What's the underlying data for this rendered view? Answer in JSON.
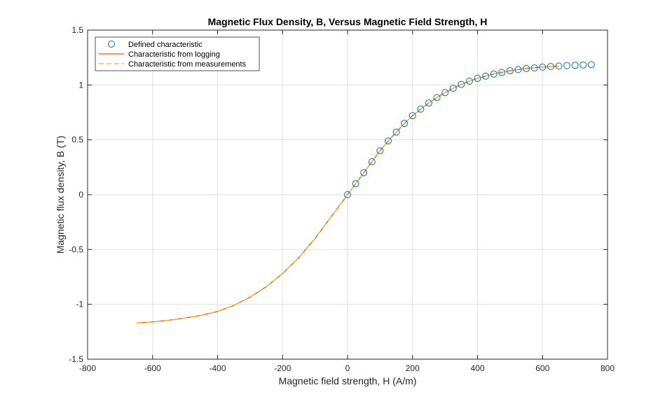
{
  "chart_data": {
    "type": "line",
    "title": "Magnetic Flux Density, B, Versus Magnetic Field Strength, H",
    "xlabel": "Magnetic field strength, H (A/m)",
    "ylabel": "Magnetic flux density, B (T)",
    "xlim": [
      -800,
      800
    ],
    "ylim": [
      -1.5,
      1.5
    ],
    "xticks": [
      -800,
      -600,
      -400,
      -200,
      0,
      200,
      400,
      600,
      800
    ],
    "xtick_labels": [
      "-800",
      "-600",
      "-400",
      "-200",
      "0",
      "200",
      "400",
      "600",
      "800"
    ],
    "yticks": [
      -1.5,
      -1,
      -0.5,
      0,
      0.5,
      1,
      1.5
    ],
    "ytick_labels": [
      "-1.5",
      "-1",
      "-0.5",
      "0",
      "0.5",
      "1",
      "1.5"
    ],
    "grid": true,
    "legend_position": "top-left",
    "series": [
      {
        "name": "Defined characteristic",
        "style": "markers",
        "marker": "circle",
        "color": "#0072BD",
        "x": [
          0,
          25,
          50,
          75,
          100,
          125,
          150,
          175,
          200,
          225,
          250,
          275,
          300,
          325,
          350,
          375,
          400,
          425,
          450,
          475,
          500,
          525,
          550,
          575,
          600,
          625,
          650,
          675,
          700,
          725,
          750
        ],
        "y": [
          0,
          0.1,
          0.2,
          0.3,
          0.4,
          0.49,
          0.57,
          0.65,
          0.72,
          0.78,
          0.835,
          0.885,
          0.93,
          0.97,
          1.005,
          1.035,
          1.06,
          1.08,
          1.1,
          1.115,
          1.13,
          1.14,
          1.15,
          1.155,
          1.163,
          1.168,
          1.172,
          1.176,
          1.179,
          1.182,
          1.185
        ]
      },
      {
        "name": "Characteristic from logging",
        "style": "solid",
        "color": "#D95319",
        "x": [
          -650,
          -600,
          -550,
          -500,
          -450,
          -400,
          -350,
          -300,
          -250,
          -200,
          -150,
          -100,
          -50,
          0,
          25,
          50,
          75,
          100,
          125,
          150,
          175,
          200,
          225,
          250,
          275,
          300,
          325,
          350,
          375,
          400,
          450,
          500,
          550,
          600,
          650
        ],
        "y": [
          -1.17,
          -1.16,
          -1.145,
          -1.125,
          -1.1,
          -1.065,
          -1.01,
          -0.935,
          -0.84,
          -0.72,
          -0.575,
          -0.4,
          -0.2,
          0,
          0.1,
          0.2,
          0.3,
          0.4,
          0.49,
          0.57,
          0.65,
          0.72,
          0.78,
          0.835,
          0.885,
          0.93,
          0.97,
          1.005,
          1.035,
          1.06,
          1.1,
          1.13,
          1.15,
          1.163,
          1.172
        ]
      },
      {
        "name": "Characteristic from measurements",
        "style": "dashed",
        "color": "#EDB120",
        "x": [
          -650,
          -600,
          -550,
          -500,
          -450,
          -400,
          -350,
          -300,
          -250,
          -200,
          -150,
          -100,
          -50,
          0,
          25,
          50,
          75,
          100,
          125,
          150,
          175,
          200,
          225,
          250,
          275,
          300,
          325,
          350,
          375,
          400,
          450,
          500,
          550,
          600,
          650
        ],
        "y": [
          -1.17,
          -1.16,
          -1.145,
          -1.125,
          -1.1,
          -1.065,
          -1.01,
          -0.935,
          -0.84,
          -0.72,
          -0.575,
          -0.4,
          -0.2,
          0,
          0.1,
          0.2,
          0.3,
          0.4,
          0.49,
          0.57,
          0.65,
          0.72,
          0.78,
          0.835,
          0.885,
          0.93,
          0.97,
          1.005,
          1.035,
          1.06,
          1.1,
          1.13,
          1.15,
          1.163,
          1.172
        ]
      }
    ]
  }
}
